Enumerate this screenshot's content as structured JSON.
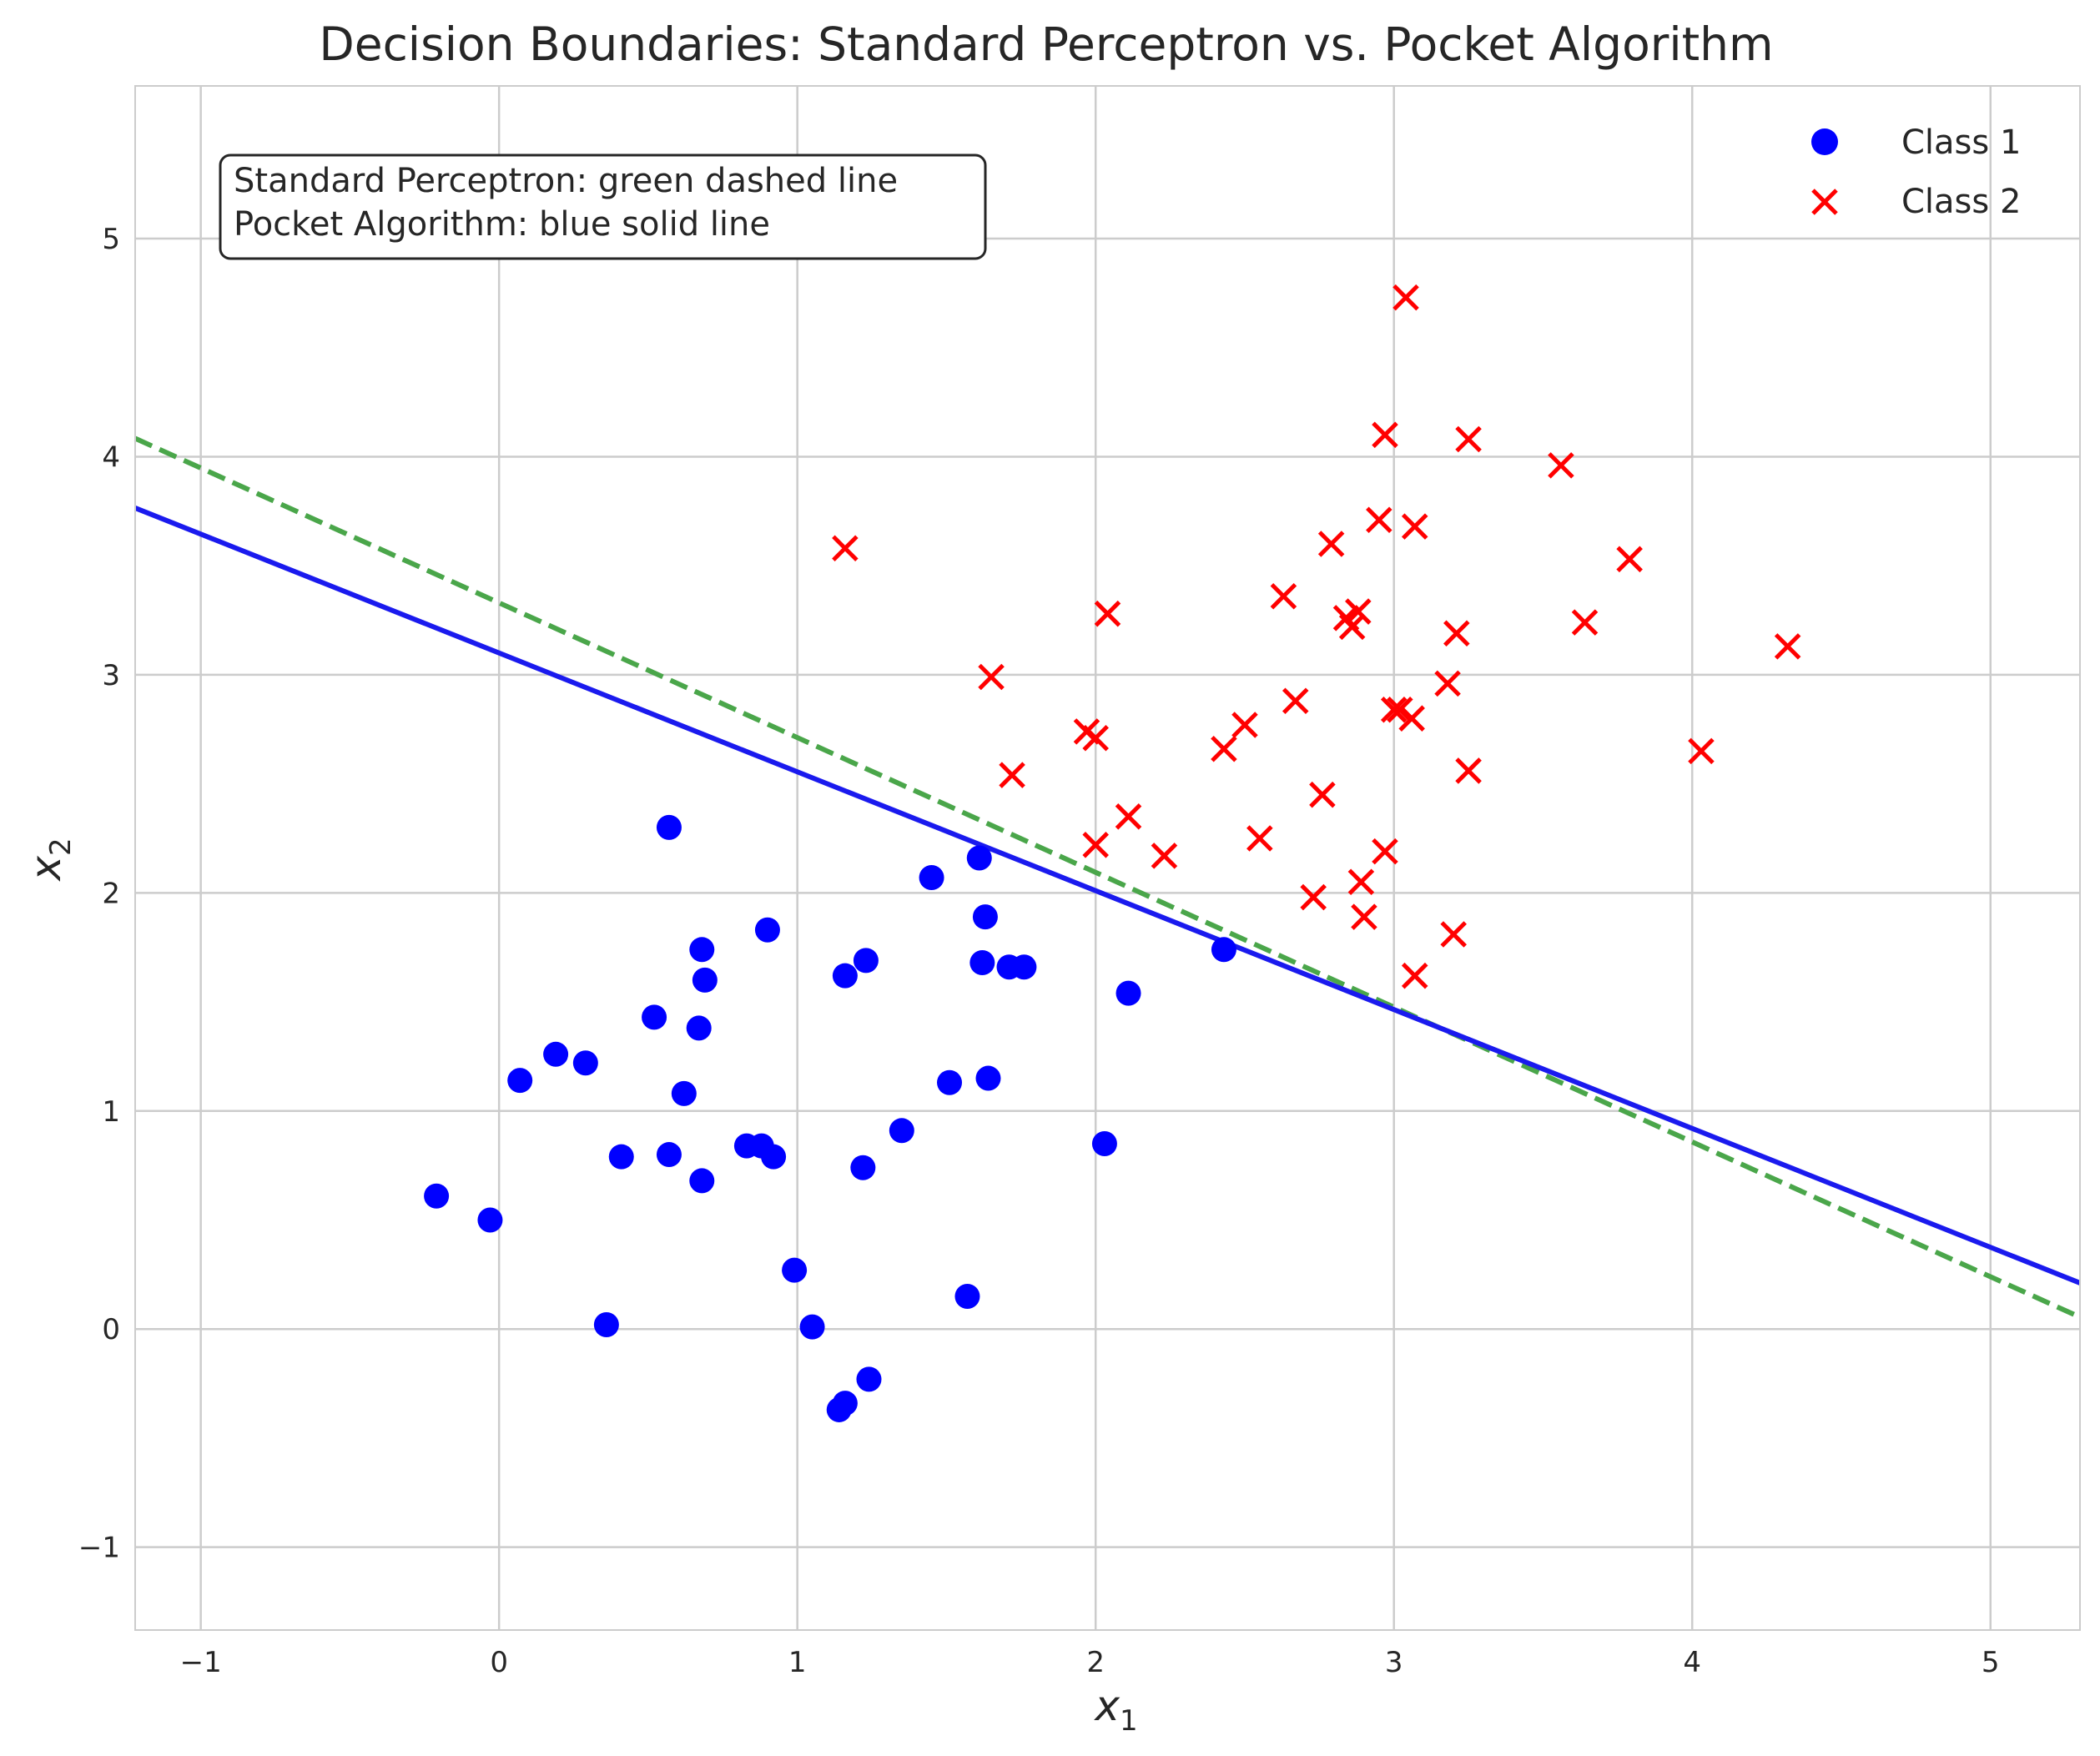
{
  "chart_data": {
    "type": "scatter",
    "title": "Decision Boundaries: Standard Perceptron vs. Pocket Algorithm",
    "xlabel_base": "x",
    "xlabel_sub": "1",
    "ylabel_base": "x",
    "ylabel_sub": "2",
    "xlim": [
      -1.22,
      5.3
    ],
    "ylim": [
      -1.38,
      5.7
    ],
    "xticks": [
      -1,
      0,
      1,
      2,
      3,
      4,
      5
    ],
    "yticks": [
      -1,
      0,
      1,
      2,
      3,
      4,
      5
    ],
    "grid": true,
    "legend_position": "top-right",
    "annotation": [
      "Standard Perceptron: green dashed line",
      "Pocket Algorithm: blue solid line"
    ],
    "series": [
      {
        "name": "Class 1",
        "marker": "circle",
        "color": "#0000ff",
        "points": [
          [
            -0.21,
            0.61
          ],
          [
            -0.03,
            0.5
          ],
          [
            0.07,
            1.14
          ],
          [
            0.19,
            1.26
          ],
          [
            0.29,
            1.22
          ],
          [
            0.36,
            0.02
          ],
          [
            0.41,
            0.79
          ],
          [
            0.52,
            1.43
          ],
          [
            0.57,
            0.8
          ],
          [
            0.57,
            2.3
          ],
          [
            0.62,
            1.08
          ],
          [
            0.67,
            1.38
          ],
          [
            0.68,
            1.74
          ],
          [
            0.69,
            1.6
          ],
          [
            0.68,
            0.68
          ],
          [
            0.83,
            0.84
          ],
          [
            0.88,
            0.84
          ],
          [
            0.9,
            1.83
          ],
          [
            0.92,
            0.79
          ],
          [
            0.99,
            0.27
          ],
          [
            1.05,
            0.01
          ],
          [
            1.14,
            -0.37
          ],
          [
            1.16,
            -0.34
          ],
          [
            1.16,
            1.62
          ],
          [
            1.22,
            0.74
          ],
          [
            1.23,
            1.69
          ],
          [
            1.24,
            -0.23
          ],
          [
            1.35,
            0.91
          ],
          [
            1.45,
            2.07
          ],
          [
            1.51,
            1.13
          ],
          [
            1.57,
            0.15
          ],
          [
            1.61,
            2.16
          ],
          [
            1.62,
            1.68
          ],
          [
            1.63,
            1.89
          ],
          [
            1.64,
            1.15
          ],
          [
            1.71,
            1.66
          ],
          [
            1.76,
            1.66
          ],
          [
            2.03,
            0.85
          ],
          [
            2.11,
            1.54
          ],
          [
            2.43,
            1.74
          ]
        ]
      },
      {
        "name": "Class 2",
        "marker": "x",
        "color": "#ff0000",
        "points": [
          [
            1.16,
            3.58
          ],
          [
            1.65,
            2.99
          ],
          [
            1.72,
            2.54
          ],
          [
            1.97,
            2.74
          ],
          [
            2.0,
            2.71
          ],
          [
            2.0,
            2.22
          ],
          [
            2.04,
            3.28
          ],
          [
            2.11,
            2.35
          ],
          [
            2.23,
            2.17
          ],
          [
            2.43,
            2.66
          ],
          [
            2.5,
            2.77
          ],
          [
            2.55,
            2.25
          ],
          [
            2.63,
            3.36
          ],
          [
            2.67,
            2.88
          ],
          [
            2.73,
            1.98
          ],
          [
            2.76,
            2.45
          ],
          [
            2.79,
            3.6
          ],
          [
            2.84,
            3.26
          ],
          [
            2.86,
            3.22
          ],
          [
            2.88,
            3.29
          ],
          [
            2.89,
            2.05
          ],
          [
            2.9,
            1.89
          ],
          [
            2.95,
            3.71
          ],
          [
            2.97,
            4.1
          ],
          [
            2.97,
            2.19
          ],
          [
            3.0,
            2.84
          ],
          [
            3.02,
            2.84
          ],
          [
            3.04,
            4.73
          ],
          [
            3.06,
            2.8
          ],
          [
            3.07,
            3.68
          ],
          [
            3.07,
            1.62
          ],
          [
            3.18,
            2.96
          ],
          [
            3.2,
            1.81
          ],
          [
            3.21,
            3.19
          ],
          [
            3.25,
            4.08
          ],
          [
            3.25,
            2.56
          ],
          [
            3.56,
            3.96
          ],
          [
            3.64,
            3.24
          ],
          [
            3.79,
            3.53
          ],
          [
            4.03,
            2.65
          ],
          [
            4.32,
            3.13
          ]
        ]
      }
    ],
    "lines": [
      {
        "name": "Standard Perceptron",
        "style": "dashed",
        "color": "#4aa64a",
        "slope": -0.618,
        "intercept": 3.33
      },
      {
        "name": "Pocket Algorithm",
        "style": "solid",
        "color": "#1a1aee",
        "slope": -0.545,
        "intercept": 3.1
      }
    ]
  }
}
